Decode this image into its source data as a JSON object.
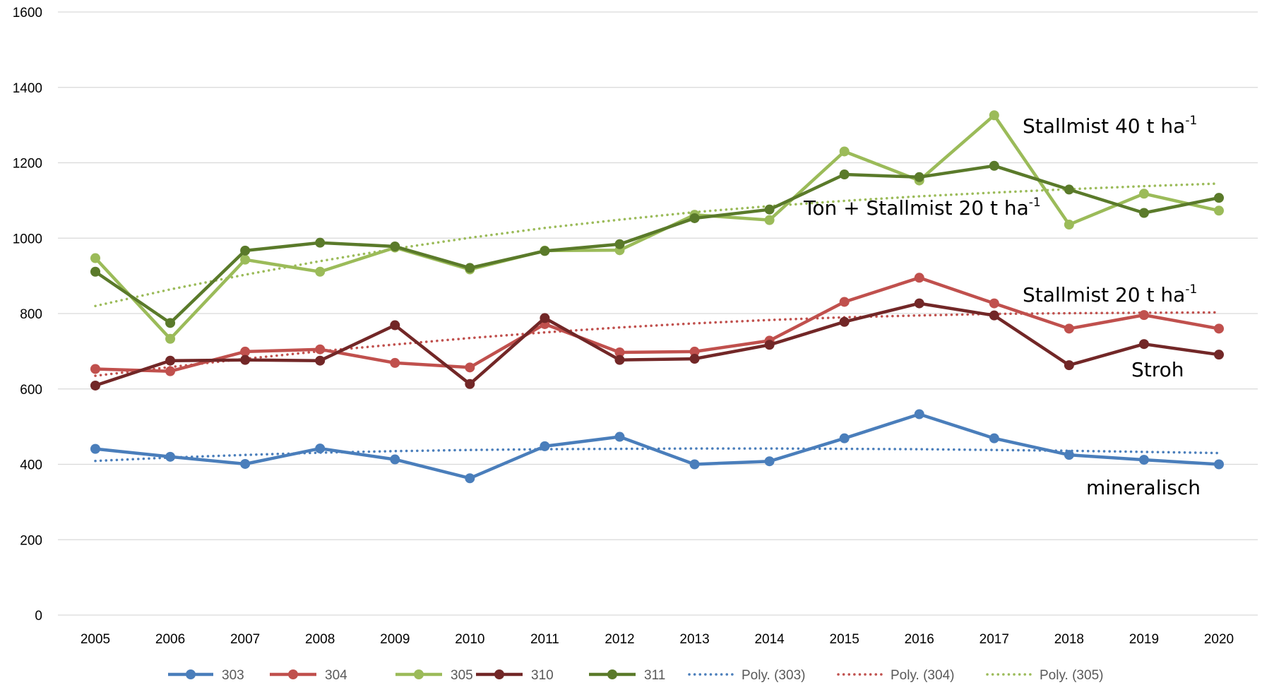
{
  "chart_data": {
    "type": "line",
    "x": [
      2005,
      2006,
      2007,
      2008,
      2009,
      2010,
      2011,
      2012,
      2013,
      2014,
      2015,
      2016,
      2017,
      2018,
      2019,
      2020
    ],
    "ylim": [
      0,
      1600
    ],
    "yticks": [
      0,
      200,
      400,
      600,
      800,
      1000,
      1200,
      1400,
      1600
    ],
    "grid": true,
    "legend_position": "bottom",
    "title": "",
    "xlabel": "",
    "ylabel": "",
    "series": [
      {
        "name": "303",
        "color": "#4a7ebb",
        "style": "solid",
        "values": [
          441,
          420,
          401,
          442,
          413,
          363,
          448,
          473,
          400,
          408,
          469,
          533,
          469,
          425,
          412,
          400
        ]
      },
      {
        "name": "304",
        "color": "#c0504d",
        "style": "solid",
        "values": [
          653,
          647,
          699,
          705,
          669,
          657,
          772,
          697,
          699,
          728,
          831,
          895,
          827,
          760,
          796,
          760
        ]
      },
      {
        "name": "305",
        "color": "#9bbb59",
        "style": "solid",
        "values": [
          947,
          733,
          943,
          911,
          975,
          917,
          967,
          968,
          1062,
          1048,
          1230,
          1153,
          1326,
          1036,
          1118,
          1073
        ]
      },
      {
        "name": "310",
        "color": "#722727",
        "style": "solid",
        "values": [
          609,
          675,
          677,
          675,
          769,
          613,
          788,
          677,
          680,
          717,
          778,
          827,
          795,
          663,
          719,
          691
        ]
      },
      {
        "name": "311",
        "color": "#5a7a2a",
        "style": "solid",
        "values": [
          911,
          775,
          967,
          988,
          978,
          921,
          966,
          984,
          1053,
          1076,
          1169,
          1162,
          1192,
          1129,
          1067,
          1107
        ]
      },
      {
        "name": "Poly. (303)",
        "color": "#4a7ebb",
        "style": "dotted",
        "values": [
          409,
          418,
          425,
          431,
          435,
          438,
          440,
          441,
          442,
          442,
          441,
          440,
          438,
          436,
          433,
          430
        ]
      },
      {
        "name": "Poly. (304)",
        "color": "#c0504d",
        "style": "dotted",
        "values": [
          635,
          658,
          680,
          700,
          718,
          735,
          750,
          763,
          774,
          783,
          790,
          795,
          799,
          801,
          802,
          803
        ]
      },
      {
        "name": "Poly. (305)",
        "color": "#9bbb59",
        "style": "dotted",
        "values": [
          820,
          864,
          903,
          939,
          972,
          1001,
          1027,
          1049,
          1069,
          1085,
          1099,
          1111,
          1121,
          1130,
          1138,
          1145
        ]
      }
    ],
    "annotations": [
      {
        "text": "Stallmist 40 t ha",
        "sup": "-1"
      },
      {
        "text": "Ton + Stallmist 20 t ha",
        "sup": "-1"
      },
      {
        "text": "Stallmist 20 t ha",
        "sup": "-1"
      },
      {
        "text": "Stroh",
        "sup": ""
      },
      {
        "text": "mineralisch",
        "sup": ""
      }
    ]
  }
}
